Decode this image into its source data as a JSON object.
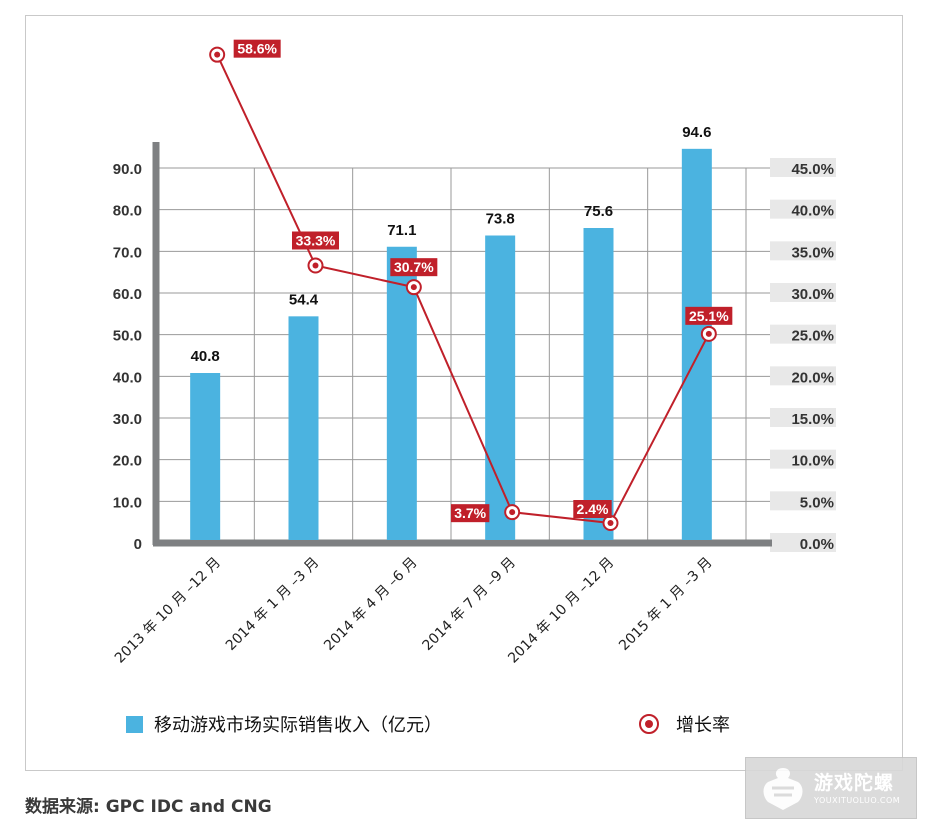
{
  "chart_data": {
    "type": "bar",
    "categories": [
      "2013 年 10 月 –12 月",
      "2014 年 1 月 –3 月",
      "2014 年 4 月 –6 月",
      "2014 年 7 月 –9 月",
      "2014 年 10 月 –12 月",
      "2015 年 1 月 –3 月"
    ],
    "series": [
      {
        "name": "移动游戏市场实际销售收入（亿元）",
        "type": "bar",
        "axis": "left",
        "values": [
          40.8,
          54.4,
          71.1,
          73.8,
          75.6,
          94.6
        ],
        "labels": [
          "40.8",
          "54.4",
          "71.1",
          "73.8",
          "75.6",
          "94.6"
        ],
        "color": "#4bb3e0"
      },
      {
        "name": "增长率",
        "type": "line",
        "axis": "right",
        "values": [
          58.6,
          33.3,
          30.7,
          3.7,
          2.4,
          25.1
        ],
        "labels": [
          "58.6%",
          "33.3%",
          "30.7%",
          "3.7%",
          "2.4%",
          "25.1%"
        ],
        "color": "#c0202a"
      }
    ],
    "y_left": {
      "min": 0,
      "max": 90,
      "ticks": [
        "0",
        "10.0",
        "20.0",
        "30.0",
        "40.0",
        "50.0",
        "60.0",
        "70.0",
        "80.0",
        "90.0"
      ]
    },
    "y_right": {
      "min": 0,
      "max": 45,
      "ticks": [
        "0.0%",
        "5.0%",
        "10.0%",
        "15.0%",
        "20.0%",
        "25.0%",
        "30.0%",
        "35.0%",
        "40.0%",
        "45.0%"
      ]
    },
    "grid": true,
    "legend_position": "bottom"
  },
  "legend": {
    "bar_label": "移动游戏市场实际销售收入（亿元）",
    "line_label": "增长率"
  },
  "source": "数据来源: GPC IDC and CNG",
  "watermark": {
    "title": "游戏陀螺",
    "subtitle": "YOUXITUOLUO.COM"
  },
  "colors": {
    "bar": "#4bb3e0",
    "line": "#c0202a",
    "axis": "#7e8082",
    "grid": "#9a9a9a"
  }
}
